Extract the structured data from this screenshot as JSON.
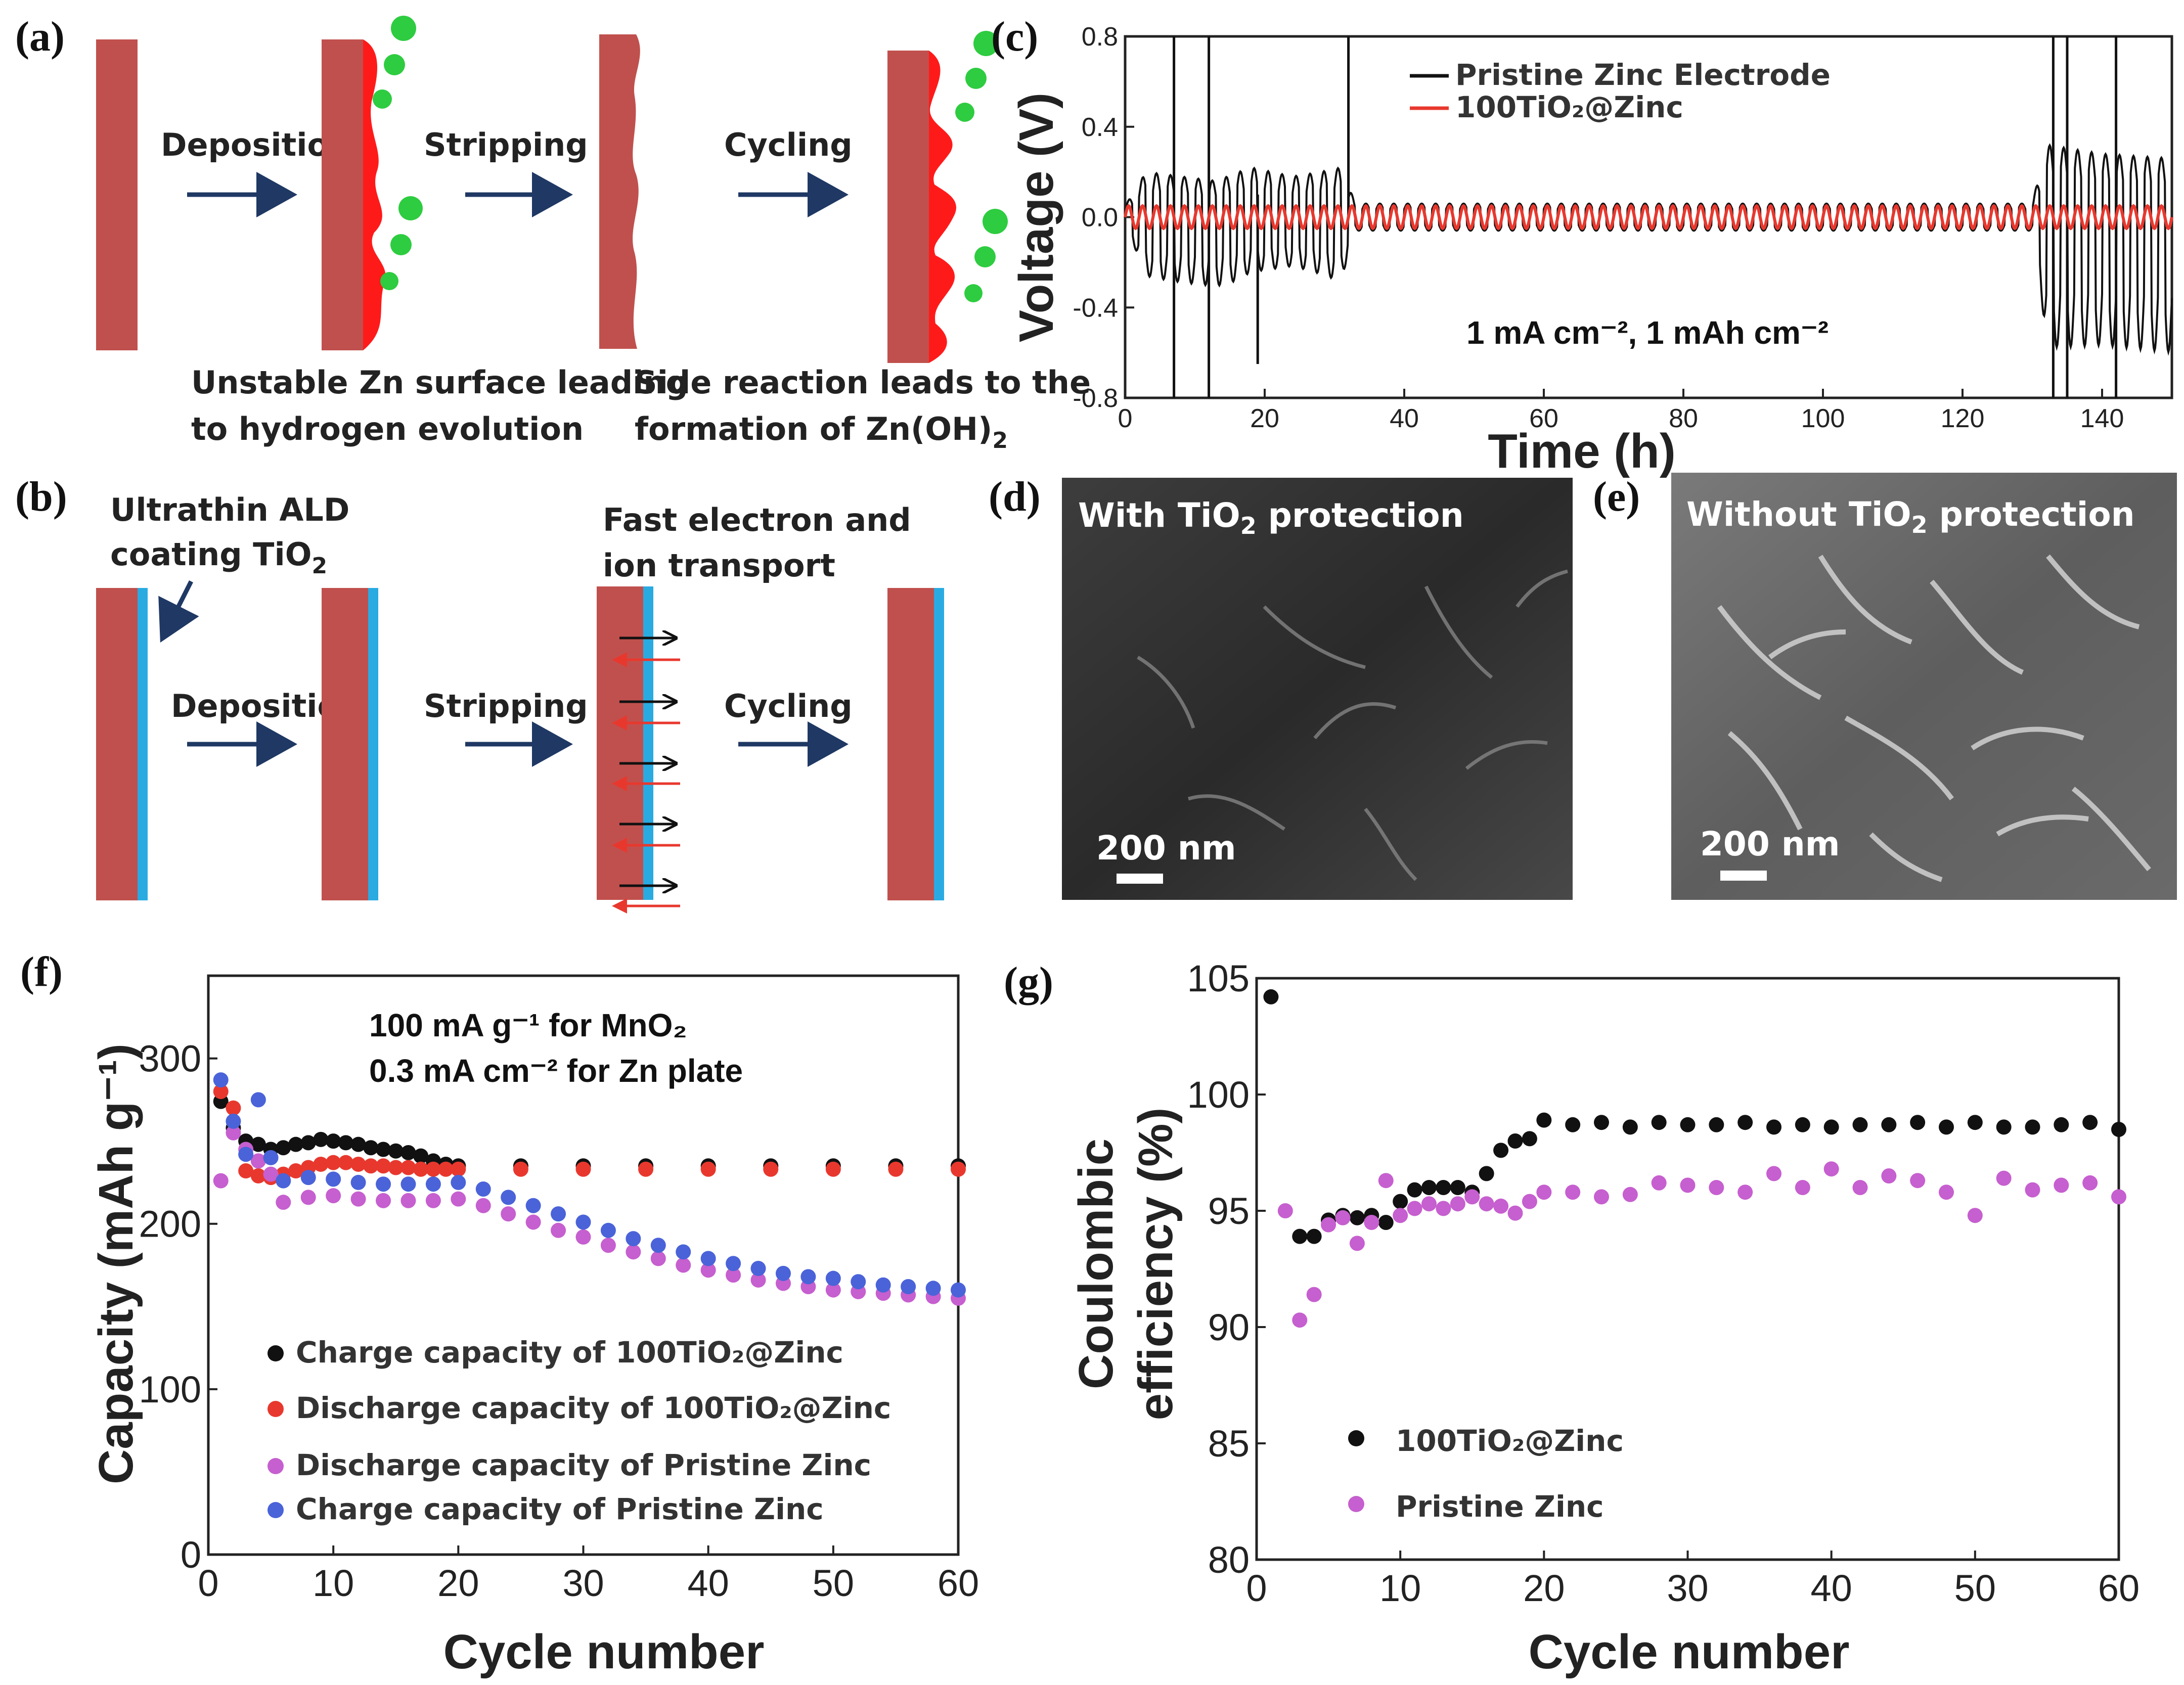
{
  "panels": {
    "a": {
      "label": "(a)",
      "deposition": "Deposition",
      "stripping": "Stripping",
      "cycling": "Cycling",
      "caption1_line1": "Unstable Zn surface leading",
      "caption1_line2": "to hydrogen evolution",
      "caption2_line1": "Side reaction leads to the",
      "caption2_line2": "formation of Zn(OH)",
      "caption2_sub": "2"
    },
    "b": {
      "label": "(b)",
      "ald_line1": "Ultrathin ALD",
      "ald_line2": "coating TiO",
      "ald_sub": "2",
      "deposition": "Deposition",
      "stripping": "Stripping",
      "cycling": "Cycling",
      "transport_line1": "Fast electron and",
      "transport_line2": "ion transport"
    },
    "c": {
      "label": "(c)"
    },
    "d": {
      "label": "(d)",
      "title": "With TiO",
      "title_sub": "2",
      "title_rest": " protection",
      "scale": "200 nm"
    },
    "e": {
      "label": "(e)",
      "title": "Without TiO",
      "title_sub": "2",
      "title_rest": " protection",
      "scale": "200 nm"
    },
    "f": {
      "label": "(f)"
    },
    "g": {
      "label": "(g)"
    }
  },
  "colors": {
    "zinc": "#c0504d",
    "tio2": "#29abe2",
    "deposit": "#ff1a1a",
    "bubble": "#2ecc40",
    "arrow": "#1f3864",
    "black_series": "#111111",
    "red_series": "#e8382e",
    "pink_series": "#c65fcf",
    "blue_series": "#4a63d9"
  },
  "chart_data": [
    {
      "id": "c",
      "type": "line",
      "xlabel": "Time (h)",
      "ylabel": "Voltage (V)",
      "xlim": [
        0,
        150
      ],
      "ylim": [
        -0.8,
        0.8
      ],
      "xticks": [
        "0",
        "20",
        "40",
        "60",
        "80",
        "100",
        "120",
        "140"
      ],
      "yticks": [
        "0.8",
        "0.4",
        "0.0",
        "-0.4",
        "-0.8"
      ],
      "annotation": "1 mA cm⁻², 1 mAh cm⁻²",
      "series": [
        {
          "name": "Pristine  Zinc Electrode",
          "color": "#111111",
          "period_h": 2,
          "envelope": [
            [
              0,
              0.05
            ],
            [
              3,
              0.2
            ],
            [
              8,
              0.18
            ],
            [
              13,
              0.16
            ],
            [
              18,
              0.22
            ],
            [
              24,
              0.18
            ],
            [
              28,
              0.2
            ],
            [
              31,
              0.22
            ],
            [
              33,
              0.06
            ],
            [
              130,
              0.06
            ],
            [
              132,
              0.32
            ],
            [
              140,
              0.28
            ],
            [
              150,
              0.26
            ]
          ],
          "lower_scale": [
            [
              0,
              1
            ],
            [
              3,
              1.3
            ],
            [
              13,
              1.9
            ],
            [
              18,
              1.1
            ],
            [
              24,
              1.2
            ],
            [
              31,
              1.3
            ],
            [
              33,
              1
            ],
            [
              130,
              1
            ],
            [
              132,
              1.8
            ],
            [
              150,
              2.3
            ]
          ],
          "spikes": [
            [
              7,
              0.8,
              -0.8
            ],
            [
              12,
              0.8,
              -0.8
            ],
            [
              19,
              0.1,
              -0.65
            ],
            [
              32,
              0.8,
              0
            ],
            [
              133,
              0.8,
              -0.8
            ],
            [
              135,
              0.8,
              -0.8
            ],
            [
              142,
              0.8,
              -0.8
            ]
          ]
        },
        {
          "name": "100TiO₂@Zinc",
          "color": "#e8382e",
          "period_h": 2,
          "amplitude": 0.05
        }
      ]
    },
    {
      "id": "f",
      "type": "scatter",
      "xlabel": "Cycle number",
      "ylabel": "Capacity (mAh g⁻¹)",
      "xlim": [
        0,
        60
      ],
      "ylim": [
        0,
        350
      ],
      "xticks": [
        "0",
        "10",
        "20",
        "30",
        "40",
        "50",
        "60"
      ],
      "yticks": [
        "0",
        "100",
        "200",
        "300"
      ],
      "annotation_line1": "100 mA g⁻¹ for MnO₂",
      "annotation_line2": "0.3 mA cm⁻² for Zn plate",
      "series": [
        {
          "name": "Charge capacity of 100TiO₂@Zinc",
          "color": "#111111",
          "x": [
            1,
            2,
            3,
            4,
            5,
            6,
            7,
            8,
            9,
            10,
            11,
            12,
            13,
            14,
            15,
            16,
            17,
            18,
            19,
            20,
            25,
            30,
            35,
            40,
            45,
            50,
            55,
            60
          ],
          "y": [
            274,
            258,
            250,
            248,
            245,
            246,
            248,
            249,
            251,
            250,
            249,
            248,
            246,
            245,
            244,
            243,
            241,
            238,
            236,
            235,
            235,
            235,
            235,
            235,
            235,
            235,
            235,
            235
          ]
        },
        {
          "name": "Discharge capacity of 100TiO₂@Zinc",
          "color": "#e8382e",
          "x": [
            1,
            2,
            3,
            4,
            5,
            6,
            7,
            8,
            9,
            10,
            11,
            12,
            13,
            14,
            15,
            16,
            17,
            18,
            19,
            20,
            25,
            30,
            35,
            40,
            45,
            50,
            55,
            60
          ],
          "y": [
            280,
            270,
            232,
            229,
            228,
            230,
            232,
            234,
            236,
            237,
            237,
            236,
            235,
            235,
            234,
            234,
            233,
            233,
            233,
            233,
            233,
            233,
            233,
            233,
            233,
            233,
            233,
            233
          ]
        },
        {
          "name": "Discharge capacity of Pristine Zinc",
          "color": "#c65fcf",
          "x": [
            1,
            2,
            3,
            4,
            5,
            6,
            8,
            10,
            12,
            14,
            16,
            18,
            20,
            22,
            24,
            26,
            28,
            30,
            32,
            34,
            36,
            38,
            40,
            42,
            44,
            46,
            48,
            50,
            52,
            54,
            56,
            58,
            60
          ],
          "y": [
            226,
            255,
            245,
            238,
            230,
            213,
            216,
            217,
            215,
            214,
            214,
            214,
            215,
            211,
            206,
            201,
            196,
            192,
            187,
            183,
            179,
            175,
            172,
            169,
            166,
            164,
            162,
            160,
            159,
            158,
            157,
            156,
            155
          ]
        },
        {
          "name": "Charge capacity of Pristine Zinc",
          "color": "#4a63d9",
          "x": [
            1,
            2,
            3,
            4,
            5,
            6,
            8,
            10,
            12,
            14,
            16,
            18,
            20,
            22,
            24,
            26,
            28,
            30,
            32,
            34,
            36,
            38,
            40,
            42,
            44,
            46,
            48,
            50,
            52,
            54,
            56,
            58,
            60
          ],
          "y": [
            287,
            262,
            242,
            275,
            240,
            226,
            228,
            227,
            225,
            224,
            224,
            224,
            225,
            221,
            216,
            211,
            206,
            201,
            196,
            191,
            187,
            183,
            179,
            176,
            173,
            170,
            168,
            167,
            165,
            163,
            162,
            161,
            160
          ]
        }
      ]
    },
    {
      "id": "g",
      "type": "scatter",
      "xlabel": "Cycle number",
      "ylabel_line1": "Coulombic",
      "ylabel_line2": "efficiency (%)",
      "xlim": [
        0,
        60
      ],
      "ylim": [
        80,
        105
      ],
      "xticks": [
        "0",
        "10",
        "20",
        "30",
        "40",
        "50",
        "60"
      ],
      "yticks": [
        "80",
        "85",
        "90",
        "95",
        "100",
        "105"
      ],
      "series": [
        {
          "name": "100TiO₂@Zinc",
          "color": "#111111",
          "x": [
            1,
            3,
            4,
            5,
            6,
            7,
            8,
            9,
            10,
            11,
            12,
            13,
            14,
            15,
            16,
            17,
            18,
            19,
            20,
            22,
            24,
            26,
            28,
            30,
            32,
            34,
            36,
            38,
            40,
            42,
            44,
            46,
            48,
            50,
            52,
            54,
            56,
            58,
            60
          ],
          "y": [
            104.2,
            93.9,
            93.9,
            94.6,
            94.8,
            94.7,
            94.8,
            94.5,
            95.4,
            95.9,
            96.0,
            96.0,
            96.0,
            95.8,
            96.6,
            97.6,
            98.0,
            98.1,
            98.9,
            98.7,
            98.8,
            98.6,
            98.8,
            98.7,
            98.7,
            98.8,
            98.6,
            98.7,
            98.6,
            98.7,
            98.7,
            98.8,
            98.6,
            98.8,
            98.6,
            98.6,
            98.7,
            98.8,
            98.5
          ]
        },
        {
          "name": "Pristine Zinc",
          "color": "#c65fcf",
          "x": [
            2,
            3,
            4,
            5,
            6,
            7,
            8,
            9,
            10,
            11,
            12,
            13,
            14,
            15,
            16,
            17,
            18,
            19,
            20,
            22,
            24,
            26,
            28,
            30,
            32,
            34,
            36,
            38,
            40,
            42,
            44,
            46,
            48,
            50,
            52,
            54,
            56,
            58,
            60
          ],
          "y": [
            95.0,
            90.3,
            91.4,
            94.4,
            94.7,
            93.6,
            94.5,
            96.3,
            94.8,
            95.1,
            95.3,
            95.1,
            95.3,
            95.6,
            95.3,
            95.2,
            94.9,
            95.4,
            95.8,
            95.8,
            95.6,
            95.7,
            96.2,
            96.1,
            96.0,
            95.8,
            96.6,
            96.0,
            96.8,
            96.0,
            96.5,
            96.3,
            95.8,
            94.8,
            96.4,
            95.9,
            96.1,
            96.2,
            95.6
          ]
        }
      ]
    }
  ]
}
